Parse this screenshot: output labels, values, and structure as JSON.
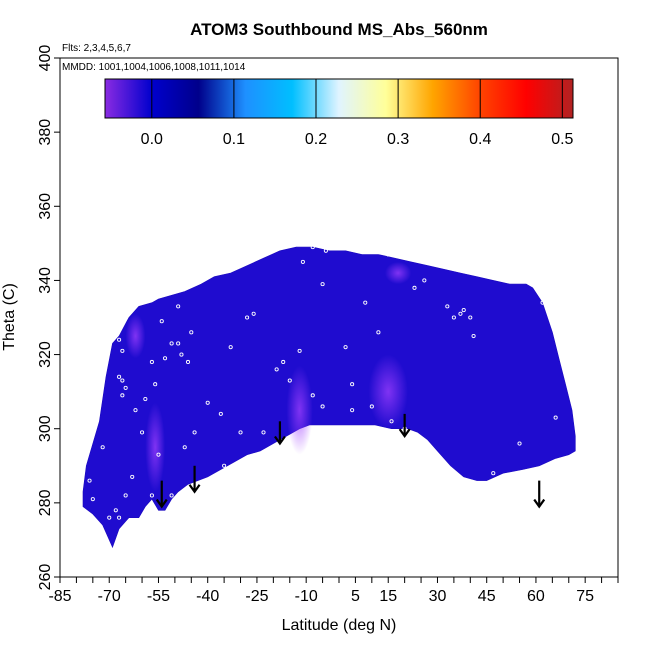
{
  "chart_data": {
    "type": "heatmap",
    "title": "ATOM3 Southbound MS_Abs_560nm",
    "subtitle_flights": "Flts: 2,3,4,5,6,7",
    "subtitle_dates": "MMDD: 1001,1004,1006,1008,1011,1014",
    "xlabel": "Latitude (deg N)",
    "ylabel": "Theta (C)",
    "xlim": [
      -85,
      85
    ],
    "ylim": [
      260,
      400
    ],
    "x_ticks": [
      -85,
      -70,
      -55,
      -40,
      -25,
      -10,
      5,
      15,
      30,
      45,
      60,
      75
    ],
    "x_minor_step": 5,
    "y_ticks": [
      260,
      280,
      300,
      320,
      340,
      360,
      380,
      400
    ],
    "colorbar": {
      "range": [
        -0.057,
        0.513
      ],
      "ticks": [
        0.0,
        0.1,
        0.2,
        0.3,
        0.4,
        0.5
      ],
      "tick_labels": [
        "0.0",
        "0.1",
        "0.2",
        "0.3",
        "0.4",
        "0.5"
      ],
      "colors": [
        "#8a2be2",
        "#0000cd",
        "#00008b",
        "#1e90ff",
        "#00bfff",
        "#e0f4ff",
        "#ffff99",
        "#ffa500",
        "#ff4500",
        "#ff0000",
        "#b22222"
      ]
    },
    "field_boundary": [
      [
        -69,
        268
      ],
      [
        -72,
        274
      ],
      [
        -75,
        277
      ],
      [
        -78,
        279
      ],
      [
        -78,
        283
      ],
      [
        -77,
        290
      ],
      [
        -73,
        302
      ],
      [
        -71,
        314
      ],
      [
        -69,
        323
      ],
      [
        -67,
        325
      ],
      [
        -64,
        330
      ],
      [
        -61,
        333
      ],
      [
        -57,
        334
      ],
      [
        -55,
        335
      ],
      [
        -51,
        336
      ],
      [
        -47,
        337
      ],
      [
        -42,
        339
      ],
      [
        -38,
        341
      ],
      [
        -33,
        342
      ],
      [
        -28,
        344
      ],
      [
        -23,
        346
      ],
      [
        -18,
        348
      ],
      [
        -13,
        349
      ],
      [
        -8,
        349
      ],
      [
        -3,
        348
      ],
      [
        2,
        348
      ],
      [
        7,
        347
      ],
      [
        12,
        347
      ],
      [
        17,
        346
      ],
      [
        22,
        345
      ],
      [
        27,
        344
      ],
      [
        32,
        343
      ],
      [
        37,
        342
      ],
      [
        42,
        341
      ],
      [
        47,
        340
      ],
      [
        52,
        339
      ],
      [
        57,
        339
      ],
      [
        59,
        338
      ],
      [
        62,
        334
      ],
      [
        65,
        326
      ],
      [
        67,
        319
      ],
      [
        69,
        312
      ],
      [
        71,
        305
      ],
      [
        72,
        298
      ],
      [
        72,
        294
      ],
      [
        70,
        293
      ],
      [
        66,
        292
      ],
      [
        61,
        290
      ],
      [
        56,
        289
      ],
      [
        50,
        288
      ],
      [
        45,
        286
      ],
      [
        42,
        286
      ],
      [
        38,
        287
      ],
      [
        34,
        290
      ],
      [
        30,
        294
      ],
      [
        27,
        297
      ],
      [
        24,
        299
      ],
      [
        21,
        300
      ],
      [
        16,
        300
      ],
      [
        11,
        301
      ],
      [
        6,
        301
      ],
      [
        1,
        301
      ],
      [
        -4,
        301
      ],
      [
        -9,
        301
      ],
      [
        -12,
        300
      ],
      [
        -16,
        298
      ],
      [
        -20,
        296
      ],
      [
        -24,
        294
      ],
      [
        -28,
        293
      ],
      [
        -32,
        291
      ],
      [
        -36,
        289
      ],
      [
        -40,
        287
      ],
      [
        -43,
        286
      ],
      [
        -46,
        285
      ],
      [
        -49,
        283
      ],
      [
        -51,
        281
      ],
      [
        -53,
        278
      ],
      [
        -55,
        278
      ],
      [
        -57,
        281
      ],
      [
        -59,
        279
      ],
      [
        -61,
        276
      ],
      [
        -64,
        276
      ],
      [
        -67,
        273
      ]
    ],
    "enhancements": [
      {
        "x": -56,
        "y": 295,
        "rx": 3,
        "ry": 12,
        "value": 0.03
      },
      {
        "x": -12,
        "y": 305,
        "rx": 4,
        "ry": 12,
        "value": 0.03
      },
      {
        "x": 15,
        "y": 310,
        "rx": 6,
        "ry": 10,
        "value": 0.02
      },
      {
        "x": 18,
        "y": 342,
        "rx": 4,
        "ry": 3,
        "value": 0.03
      },
      {
        "x": -62,
        "y": 325,
        "rx": 3,
        "ry": 6,
        "value": 0.02
      }
    ],
    "sample_points": [
      [
        -67,
        324
      ],
      [
        -66,
        321
      ],
      [
        -67,
        314
      ],
      [
        -66,
        313
      ],
      [
        -65,
        311
      ],
      [
        -66,
        309
      ],
      [
        -62,
        305
      ],
      [
        -59,
        308
      ],
      [
        -56,
        312
      ],
      [
        -57,
        318
      ],
      [
        -53,
        319
      ],
      [
        -51,
        323
      ],
      [
        -49,
        323
      ],
      [
        -48,
        320
      ],
      [
        -45,
        326
      ],
      [
        -54,
        329
      ],
      [
        -49,
        333
      ],
      [
        -28,
        330
      ],
      [
        -26,
        331
      ],
      [
        -33,
        322
      ],
      [
        -46,
        318
      ],
      [
        -55,
        293
      ],
      [
        -57,
        282
      ],
      [
        -65,
        282
      ],
      [
        -67,
        276
      ],
      [
        -68,
        278
      ],
      [
        -70,
        276
      ],
      [
        -75,
        281
      ],
      [
        -76,
        286
      ],
      [
        -72,
        295
      ],
      [
        -47,
        295
      ],
      [
        -44,
        299
      ],
      [
        -23,
        299
      ],
      [
        -18,
        296
      ],
      [
        -11,
        345
      ],
      [
        -8,
        349
      ],
      [
        -4,
        348
      ],
      [
        0,
        349
      ],
      [
        15,
        347
      ],
      [
        28,
        345
      ],
      [
        26,
        340
      ],
      [
        23,
        338
      ],
      [
        33,
        333
      ],
      [
        35,
        330
      ],
      [
        37,
        331
      ],
      [
        38,
        332
      ],
      [
        40,
        330
      ],
      [
        41,
        325
      ],
      [
        62,
        334
      ],
      [
        47,
        288
      ],
      [
        20,
        300
      ],
      [
        16,
        302
      ],
      [
        10,
        306
      ],
      [
        4,
        305
      ],
      [
        -5,
        306
      ],
      [
        -8,
        309
      ],
      [
        4,
        312
      ],
      [
        2,
        322
      ],
      [
        -12,
        321
      ],
      [
        -17,
        318
      ],
      [
        -19,
        316
      ],
      [
        -15,
        313
      ],
      [
        -30,
        299
      ],
      [
        -36,
        304
      ],
      [
        -40,
        307
      ],
      [
        -60,
        299
      ],
      [
        -63,
        287
      ],
      [
        -51,
        282
      ],
      [
        -44,
        280
      ],
      [
        -35,
        290
      ],
      [
        -27,
        292
      ],
      [
        -5,
        339
      ],
      [
        8,
        334
      ],
      [
        12,
        326
      ],
      [
        55,
        296
      ],
      [
        66,
        303
      ]
    ],
    "arrows": [
      {
        "x": -54,
        "y_top": 286,
        "y_bottom": 279
      },
      {
        "x": -44,
        "y_top": 290,
        "y_bottom": 283
      },
      {
        "x": -18,
        "y_top": 302,
        "y_bottom": 296
      },
      {
        "x": 20,
        "y_top": 304,
        "y_bottom": 298
      },
      {
        "x": 61,
        "y_top": 286,
        "y_bottom": 279
      }
    ]
  }
}
